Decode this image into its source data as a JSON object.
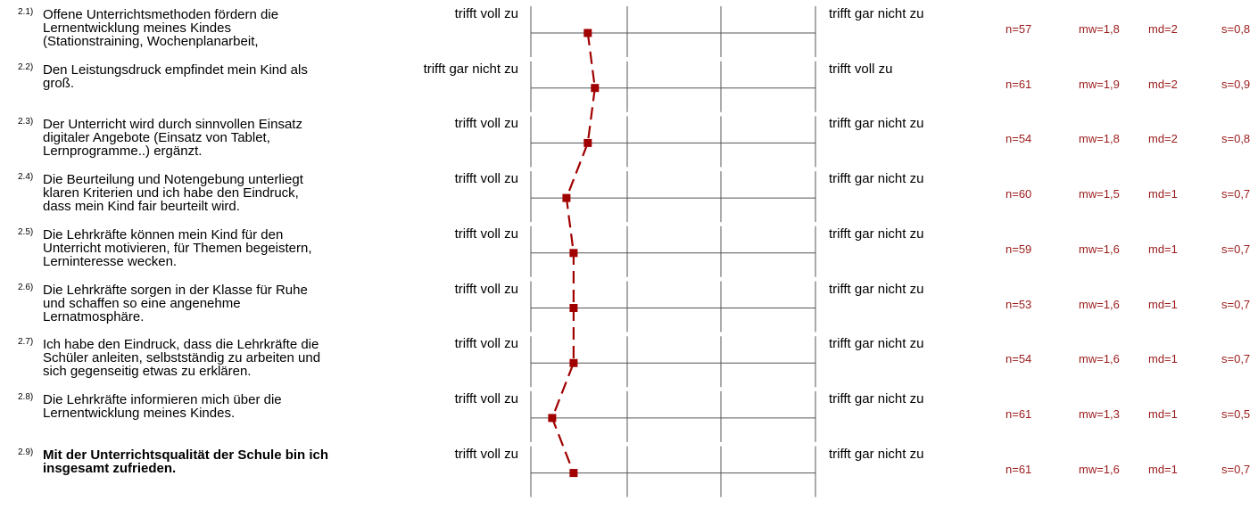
{
  "colors": {
    "series": "#a00000",
    "stats": "#9b1b1b",
    "axis": "#555555"
  },
  "chart_data": {
    "type": "line",
    "scale": [
      1,
      5
    ],
    "items": [
      {
        "number": "2.1)",
        "text": "Offene Unterrichtsmethoden fördern die\nLernentwicklung meines Kindes\n(Stationstraining, Wochenplanarbeit,",
        "bold": false,
        "left_label": "trifft voll zu",
        "right_label": "trifft gar nicht zu",
        "n": "n=57",
        "mw": "mw=1,8",
        "md": "md=2",
        "s": "s=0,8",
        "value": 1.8
      },
      {
        "number": "2.2)",
        "text": "Den Leistungsdruck empfindet mein Kind als\ngroß.",
        "bold": false,
        "left_label": "trifft gar nicht zu",
        "right_label": "trifft voll zu",
        "n": "n=61",
        "mw": "mw=1,9",
        "md": "md=2",
        "s": "s=0,9",
        "value": 1.9
      },
      {
        "number": "2.3)",
        "text": "Der Unterricht wird durch sinnvollen Einsatz\ndigitaler Angebote (Einsatz von Tablet,\nLernprogramme..) ergänzt.",
        "bold": false,
        "left_label": "trifft voll zu",
        "right_label": "trifft gar nicht zu",
        "n": "n=54",
        "mw": "mw=1,8",
        "md": "md=2",
        "s": "s=0,8",
        "value": 1.8
      },
      {
        "number": "2.4)",
        "text": "Die Beurteilung und  Notengebung unterliegt\nklaren Kriterien und ich habe den Eindruck,\ndass mein Kind fair beurteilt wird.",
        "bold": false,
        "left_label": "trifft voll zu",
        "right_label": "trifft gar nicht zu",
        "n": "n=60",
        "mw": "mw=1,5",
        "md": "md=1",
        "s": "s=0,7",
        "value": 1.5
      },
      {
        "number": "2.5)",
        "text": "Die Lehrkräfte können mein Kind für den\nUnterricht motivieren, für Themen begeistern,\nLerninteresse wecken.",
        "bold": false,
        "left_label": "trifft voll zu",
        "right_label": "trifft gar nicht zu",
        "n": "n=59",
        "mw": "mw=1,6",
        "md": "md=1",
        "s": "s=0,7",
        "value": 1.6
      },
      {
        "number": "2.6)",
        "text": "Die Lehrkräfte sorgen in der Klasse für Ruhe\nund schaffen so eine angenehme\nLernatmosphäre.",
        "bold": false,
        "left_label": "trifft voll zu",
        "right_label": "trifft gar nicht zu",
        "n": "n=53",
        "mw": "mw=1,6",
        "md": "md=1",
        "s": "s=0,7",
        "value": 1.6
      },
      {
        "number": "2.7)",
        "text": "Ich habe den Eindruck, dass die Lehrkräfte die\nSchüler anleiten, selbstständig zu arbeiten und\nsich gegenseitig etwas zu erklären.",
        "bold": false,
        "left_label": "trifft voll zu",
        "right_label": "trifft gar nicht zu",
        "n": "n=54",
        "mw": "mw=1,6",
        "md": "md=1",
        "s": "s=0,7",
        "value": 1.6
      },
      {
        "number": "2.8)",
        "text": "Die Lehrkräfte informieren mich über die\nLernentwicklung meines Kindes.",
        "bold": false,
        "left_label": "trifft voll zu",
        "right_label": "trifft gar nicht zu",
        "n": "n=61",
        "mw": "mw=1,3",
        "md": "md=1",
        "s": "s=0,5",
        "value": 1.3
      },
      {
        "number": "2.9)",
        "text": "Mit der Unterrichtsqualität der Schule bin ich\ninsgesamt zufrieden.",
        "bold": true,
        "left_label": "trifft voll zu",
        "right_label": "trifft gar nicht zu",
        "n": "n=61",
        "mw": "mw=1,6",
        "md": "md=1",
        "s": "s=0,7",
        "value": 1.6
      }
    ]
  }
}
